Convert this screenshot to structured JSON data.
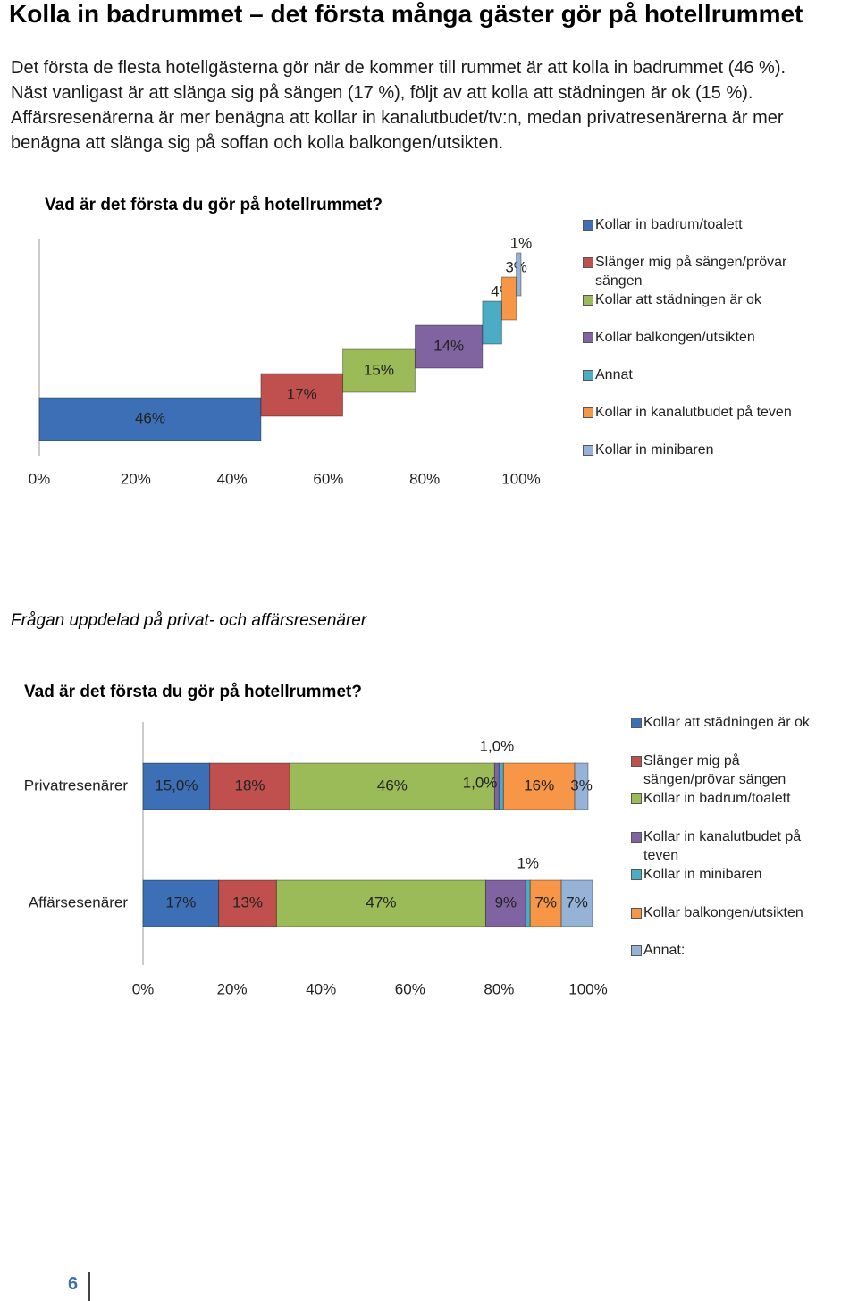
{
  "title": "Kolla in badrummet – det första många gäster gör på hotellrummet",
  "paragraph": [
    "Det första de flesta hotellgästerna gör när de kommer till rummet är att kolla in badrummet (46 %).",
    "Näst vanligast är att slänga sig på sängen (17 %), följt av att kolla att städningen är ok (15 %).",
    "Affärsresenärerna är mer benägna att kollar in kanalutbudet/tv:n, medan privatresenärerna är mer benägna att slänga sig på soffan och kolla balkongen/utsikten."
  ],
  "subheading": "Frågan uppdelad på privat- och affärsresenärer",
  "page_number": "6",
  "chart_data": [
    {
      "type": "cascade",
      "title": "Vad är det första du gör på hotellrummet?",
      "xlim": [
        0,
        100
      ],
      "xticks": [
        {
          "value": 0,
          "label": "0%"
        },
        {
          "value": 20,
          "label": "20%"
        },
        {
          "value": 40,
          "label": "40%"
        },
        {
          "value": 60,
          "label": "60%"
        },
        {
          "value": 80,
          "label": "80%"
        },
        {
          "value": 100,
          "label": "100%"
        }
      ],
      "series": [
        {
          "name": "Kollar in badrum/toalett",
          "color": "#3d6fb6",
          "values": [
            46
          ],
          "value_labels": [
            "46%"
          ]
        },
        {
          "name": "Slänger mig på sängen/prövar sängen",
          "color": "#c0504d",
          "values": [
            17
          ],
          "value_labels": [
            "17%"
          ]
        },
        {
          "name": "Kollar att städningen är ok",
          "color": "#9bbb59",
          "values": [
            15
          ],
          "value_labels": [
            "15%"
          ]
        },
        {
          "name": "Kollar balkongen/utsikten",
          "color": "#8064a2",
          "values": [
            14
          ],
          "value_labels": [
            "14%"
          ]
        },
        {
          "name": "Annat",
          "color": "#4bacc6",
          "values": [
            4
          ],
          "value_labels": [
            "4%"
          ]
        },
        {
          "name": "Kollar in kanalutbudet på teven",
          "color": "#f79646",
          "values": [
            3
          ],
          "value_labels": [
            "3%"
          ]
        },
        {
          "name": "Kollar in minibaren",
          "color": "#95b3d7",
          "values": [
            1
          ],
          "value_labels": [
            "1%"
          ]
        }
      ]
    },
    {
      "type": "stacked-bar",
      "title": "Vad är det första du gör på hotellrummet?",
      "categories": [
        "Privatresenärer",
        "Affärsesenärer"
      ],
      "xlim": [
        0,
        100
      ],
      "xticks": [
        {
          "value": 0,
          "label": "0%"
        },
        {
          "value": 20,
          "label": "20%"
        },
        {
          "value": 40,
          "label": "40%"
        },
        {
          "value": 60,
          "label": "60%"
        },
        {
          "value": 80,
          "label": "80%"
        },
        {
          "value": 100,
          "label": "100%"
        }
      ],
      "series": [
        {
          "name": "Kollar att städningen är ok",
          "color": "#3d6fb6",
          "values": [
            15,
            17
          ],
          "value_labels": [
            "15,0%",
            "17%"
          ]
        },
        {
          "name": "Slänger mig på sängen/prövar sängen",
          "color": "#c0504d",
          "values": [
            18,
            13
          ],
          "value_labels": [
            "18%",
            "13%"
          ]
        },
        {
          "name": "Kollar in badrum/toalett",
          "color": "#9bbb59",
          "values": [
            46,
            47
          ],
          "value_labels": [
            "46%",
            "47%"
          ]
        },
        {
          "name": "Kollar in kanalutbudet på teven",
          "color": "#8064a2",
          "values": [
            1.0,
            9
          ],
          "value_labels": [
            "1,0%",
            "9%"
          ]
        },
        {
          "name": "Kollar in minibaren",
          "color": "#4bacc6",
          "values": [
            1.0,
            1
          ],
          "value_labels": [
            "1,0%",
            "1%"
          ]
        },
        {
          "name": "Kollar balkongen/utsikten",
          "color": "#f79646",
          "values": [
            16,
            7
          ],
          "value_labels": [
            "16%",
            "7%"
          ]
        },
        {
          "name": "Annat:",
          "color": "#95b3d7",
          "values": [
            3,
            7
          ],
          "value_labels": [
            "3%",
            "7%"
          ]
        }
      ]
    }
  ]
}
